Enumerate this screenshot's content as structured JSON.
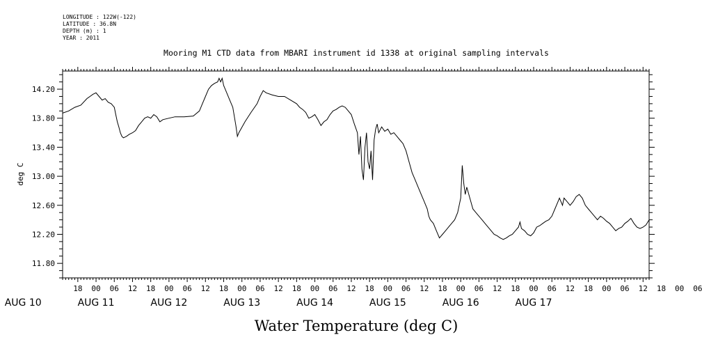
{
  "meta": {
    "longitude": "LONGITUDE : 122W(-122)",
    "latitude": "LATITUDE : 36.8N",
    "depth": "DEPTH (m) : 1",
    "year": "YEAR : 2011"
  },
  "chart_data": {
    "type": "line",
    "title": "Mooring M1 CTD data from MBARI instrument id 1338 at original sampling intervals",
    "xlabel": "Water Temperature (deg C)",
    "ylabel": "deg C",
    "ylim": [
      11.6,
      14.45
    ],
    "yticks": [
      "14.20",
      "13.80",
      "13.40",
      "13.00",
      "12.60",
      "12.20",
      "11.80"
    ],
    "x_unit": "hours since AUG 10 00:00, 2011",
    "xlim": [
      13,
      206
    ],
    "hour_ticks": [
      "18",
      "00",
      "06",
      "12",
      "18",
      "00",
      "06",
      "12",
      "18",
      "00",
      "06",
      "12",
      "18",
      "00",
      "06",
      "12",
      "18",
      "00",
      "06",
      "12",
      "18",
      "00",
      "06",
      "12",
      "18",
      "00",
      "06",
      "12",
      "18",
      "00",
      "06",
      "12",
      "18",
      "00",
      "06",
      "12"
    ],
    "days": [
      "AUG 10",
      "AUG 11",
      "AUG 12",
      "AUG 13",
      "AUG 14",
      "AUG 15",
      "AUG 16",
      "AUG 17"
    ],
    "grid": false,
    "line_color": "#000000",
    "series": [
      {
        "values": [
          [
            13,
            13.87
          ],
          [
            15,
            13.9
          ],
          [
            17,
            13.95
          ],
          [
            19,
            13.98
          ],
          [
            21,
            14.07
          ],
          [
            22,
            14.1
          ],
          [
            23,
            14.13
          ],
          [
            24,
            14.15
          ],
          [
            25,
            14.1
          ],
          [
            26,
            14.05
          ],
          [
            27,
            14.07
          ],
          [
            28,
            14.02
          ],
          [
            29,
            14.0
          ],
          [
            30,
            13.95
          ],
          [
            30.5,
            13.85
          ],
          [
            31,
            13.75
          ],
          [
            31.5,
            13.68
          ],
          [
            32,
            13.6
          ],
          [
            32.5,
            13.55
          ],
          [
            33,
            13.53
          ],
          [
            34,
            13.55
          ],
          [
            35,
            13.58
          ],
          [
            36,
            13.6
          ],
          [
            37,
            13.63
          ],
          [
            38,
            13.7
          ],
          [
            39,
            13.75
          ],
          [
            40,
            13.8
          ],
          [
            41,
            13.82
          ],
          [
            42,
            13.8
          ],
          [
            43,
            13.85
          ],
          [
            44,
            13.82
          ],
          [
            45,
            13.75
          ],
          [
            46,
            13.78
          ],
          [
            48,
            13.8
          ],
          [
            50,
            13.82
          ],
          [
            53,
            13.82
          ],
          [
            56,
            13.83
          ],
          [
            58,
            13.9
          ],
          [
            59,
            14.0
          ],
          [
            60,
            14.1
          ],
          [
            61,
            14.2
          ],
          [
            62,
            14.25
          ],
          [
            63,
            14.28
          ],
          [
            64,
            14.3
          ],
          [
            64.5,
            14.35
          ],
          [
            65,
            14.3
          ],
          [
            65.5,
            14.35
          ],
          [
            66,
            14.25
          ],
          [
            67,
            14.15
          ],
          [
            68,
            14.05
          ],
          [
            69,
            13.95
          ],
          [
            70,
            13.7
          ],
          [
            70.5,
            13.55
          ],
          [
            71,
            13.6
          ],
          [
            73,
            13.75
          ],
          [
            75,
            13.88
          ],
          [
            77,
            14.0
          ],
          [
            78,
            14.1
          ],
          [
            79,
            14.18
          ],
          [
            80,
            14.15
          ],
          [
            82,
            14.12
          ],
          [
            84,
            14.1
          ],
          [
            86,
            14.1
          ],
          [
            88,
            14.05
          ],
          [
            90,
            14.0
          ],
          [
            91,
            13.95
          ],
          [
            92,
            13.92
          ],
          [
            93,
            13.88
          ],
          [
            94,
            13.8
          ],
          [
            95,
            13.82
          ],
          [
            96,
            13.85
          ],
          [
            97,
            13.78
          ],
          [
            98,
            13.7
          ],
          [
            99,
            13.75
          ],
          [
            100,
            13.78
          ],
          [
            101,
            13.85
          ],
          [
            102,
            13.9
          ],
          [
            103,
            13.92
          ],
          [
            104,
            13.95
          ],
          [
            105,
            13.97
          ],
          [
            106,
            13.95
          ],
          [
            107,
            13.9
          ],
          [
            108,
            13.85
          ],
          [
            109,
            13.72
          ],
          [
            110,
            13.6
          ],
          [
            110.5,
            13.3
          ],
          [
            111,
            13.55
          ],
          [
            111.5,
            13.1
          ],
          [
            112,
            12.95
          ],
          [
            112.5,
            13.4
          ],
          [
            113,
            13.6
          ],
          [
            113.5,
            13.2
          ],
          [
            114,
            13.1
          ],
          [
            114.5,
            13.35
          ],
          [
            115,
            12.95
          ],
          [
            115.5,
            13.5
          ],
          [
            116,
            13.65
          ],
          [
            116.5,
            13.72
          ],
          [
            117,
            13.6
          ],
          [
            118,
            13.68
          ],
          [
            119,
            13.62
          ],
          [
            120,
            13.65
          ],
          [
            121,
            13.58
          ],
          [
            122,
            13.6
          ],
          [
            123,
            13.55
          ],
          [
            124,
            13.5
          ],
          [
            125,
            13.45
          ],
          [
            126,
            13.35
          ],
          [
            127,
            13.2
          ],
          [
            128,
            13.05
          ],
          [
            129,
            12.95
          ],
          [
            130,
            12.85
          ],
          [
            131,
            12.75
          ],
          [
            132,
            12.65
          ],
          [
            133,
            12.55
          ],
          [
            133.5,
            12.45
          ],
          [
            134,
            12.4
          ],
          [
            135,
            12.35
          ],
          [
            136,
            12.25
          ],
          [
            137,
            12.15
          ],
          [
            138,
            12.2
          ],
          [
            139,
            12.25
          ],
          [
            140,
            12.3
          ],
          [
            141,
            12.35
          ],
          [
            142,
            12.4
          ],
          [
            143,
            12.5
          ],
          [
            143.5,
            12.6
          ],
          [
            144,
            12.7
          ],
          [
            144.5,
            13.15
          ],
          [
            145,
            12.9
          ],
          [
            145.5,
            12.75
          ],
          [
            146,
            12.85
          ],
          [
            147,
            12.7
          ],
          [
            148,
            12.55
          ],
          [
            149,
            12.5
          ],
          [
            150,
            12.45
          ],
          [
            151,
            12.4
          ],
          [
            152,
            12.35
          ],
          [
            153,
            12.3
          ],
          [
            154,
            12.25
          ],
          [
            155,
            12.2
          ],
          [
            156,
            12.18
          ],
          [
            157,
            12.15
          ],
          [
            158,
            12.13
          ],
          [
            159,
            12.15
          ],
          [
            160,
            12.18
          ],
          [
            161,
            12.2
          ],
          [
            162,
            12.25
          ],
          [
            163,
            12.3
          ],
          [
            163.5,
            12.37
          ],
          [
            164,
            12.28
          ],
          [
            165,
            12.25
          ],
          [
            166,
            12.2
          ],
          [
            167,
            12.18
          ],
          [
            168,
            12.22
          ],
          [
            169,
            12.3
          ],
          [
            170,
            12.32
          ],
          [
            171,
            12.35
          ],
          [
            172,
            12.38
          ],
          [
            173,
            12.4
          ],
          [
            174,
            12.45
          ],
          [
            175,
            12.55
          ],
          [
            176,
            12.65
          ],
          [
            176.5,
            12.7
          ],
          [
            177,
            12.65
          ],
          [
            177.5,
            12.6
          ],
          [
            178,
            12.7
          ],
          [
            179,
            12.65
          ],
          [
            180,
            12.6
          ],
          [
            181,
            12.65
          ],
          [
            182,
            12.72
          ],
          [
            183,
            12.75
          ],
          [
            184,
            12.7
          ],
          [
            185,
            12.6
          ],
          [
            186,
            12.55
          ],
          [
            187,
            12.5
          ],
          [
            188,
            12.45
          ],
          [
            189,
            12.4
          ],
          [
            190,
            12.45
          ],
          [
            191,
            12.42
          ],
          [
            192,
            12.38
          ],
          [
            193,
            12.35
          ],
          [
            194,
            12.3
          ],
          [
            195,
            12.25
          ],
          [
            196,
            12.28
          ],
          [
            197,
            12.3
          ],
          [
            198,
            12.35
          ],
          [
            199,
            12.38
          ],
          [
            200,
            12.42
          ],
          [
            201,
            12.35
          ],
          [
            202,
            12.3
          ],
          [
            203,
            12.28
          ],
          [
            204,
            12.3
          ],
          [
            205,
            12.33
          ],
          [
            206,
            12.4
          ]
        ]
      }
    ]
  }
}
